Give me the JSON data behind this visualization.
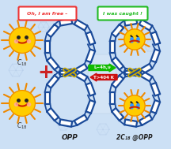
{
  "bg_color": "#cce0f5",
  "arrow_forward_color": "#11bb00",
  "arrow_reverse_color": "#cc1111",
  "arrow_forward_text": "L~4h,ν",
  "arrow_reverse_text": "T>404 K",
  "label_opp": "OPP",
  "label_c18opp": "2C₁₈ @OPP",
  "label_c18_1": "C₁‸",
  "label_c18_2": "C₁‸",
  "bubble_free": "Oh, I am free –",
  "bubble_caught": "I was caught !",
  "bubble_free_color": "#ee3333",
  "bubble_caught_color": "#22bb22",
  "nanohoop_color": "#1a4a99",
  "smiley_color": "#ffcc00",
  "smiley_ring_color": "#ee8800",
  "plus_color": "#cc2222"
}
